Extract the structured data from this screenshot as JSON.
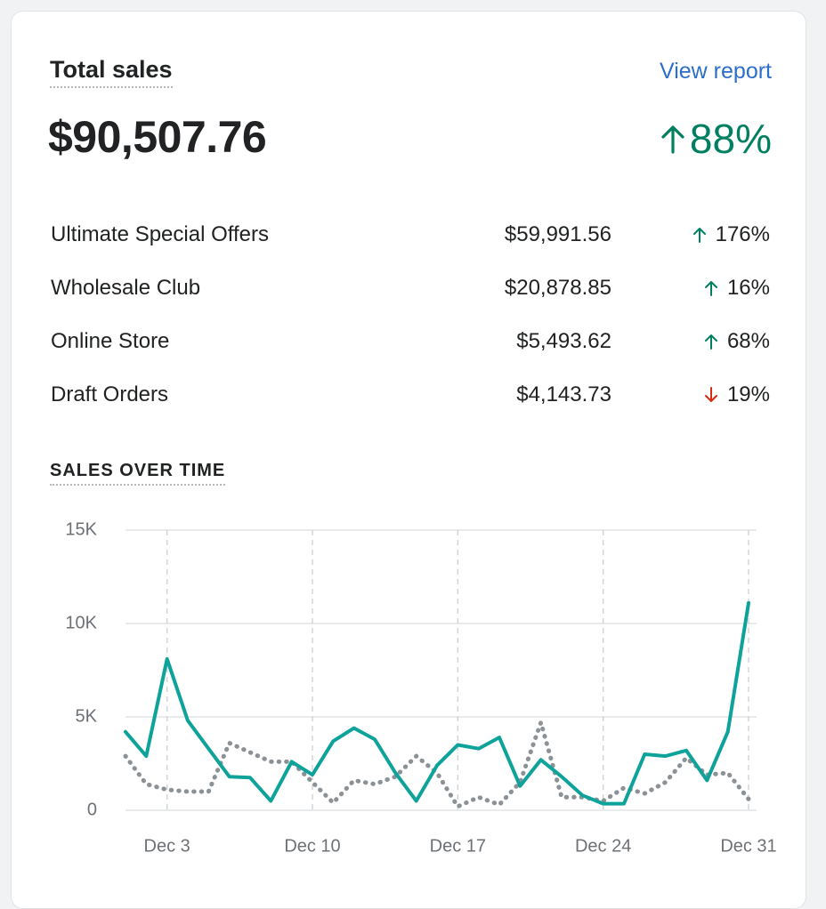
{
  "header": {
    "title": "Total sales",
    "link": "View report",
    "total": "$90,507.76",
    "change": "88%",
    "direction": "up"
  },
  "breakdown": [
    {
      "name": "Ultimate Special Offers",
      "amount": "$59,991.56",
      "change": "176%",
      "direction": "up"
    },
    {
      "name": "Wholesale Club",
      "amount": "$20,878.85",
      "change": "16%",
      "direction": "up"
    },
    {
      "name": "Online Store",
      "amount": "$5,493.62",
      "change": "68%",
      "direction": "up"
    },
    {
      "name": "Draft Orders",
      "amount": "$4,143.73",
      "change": "19%",
      "direction": "down"
    }
  ],
  "chart_data": {
    "type": "line",
    "title": "SALES OVER TIME",
    "categories": [
      null,
      null,
      "Dec 3",
      null,
      null,
      null,
      null,
      null,
      null,
      "Dec 10",
      null,
      null,
      null,
      null,
      null,
      null,
      "Dec 17",
      null,
      null,
      null,
      null,
      null,
      null,
      "Dec 24",
      null,
      null,
      null,
      null,
      null,
      null,
      "Dec 31"
    ],
    "series": [
      {
        "color": "#0ea39a",
        "style": "solid",
        "values": [
          4200,
          2900,
          8100,
          4800,
          3300,
          1800,
          1750,
          500,
          2600,
          1900,
          3700,
          4400,
          3800,
          2000,
          500,
          2400,
          3500,
          3300,
          3900,
          1300,
          2700,
          1800,
          800,
          350,
          350,
          3000,
          2900,
          3200,
          1600,
          4200,
          11100
        ]
      },
      {
        "color": "#8c9196",
        "style": "dotted",
        "values": [
          2900,
          1400,
          1100,
          1000,
          1000,
          3600,
          3100,
          2600,
          2600,
          1500,
          400,
          1600,
          1400,
          1800,
          2900,
          2000,
          200,
          700,
          300,
          1500,
          4700,
          700,
          700,
          500,
          1200,
          900,
          1500,
          2800,
          1900,
          2000,
          600
        ]
      }
    ],
    "ylim": [
      0,
      15000
    ],
    "yticks": [
      0,
      {
        "value": 5000,
        "label": "5K"
      },
      {
        "value": 10000,
        "label": "10K"
      },
      {
        "value": 15000,
        "label": "15K"
      }
    ],
    "grid": true
  }
}
